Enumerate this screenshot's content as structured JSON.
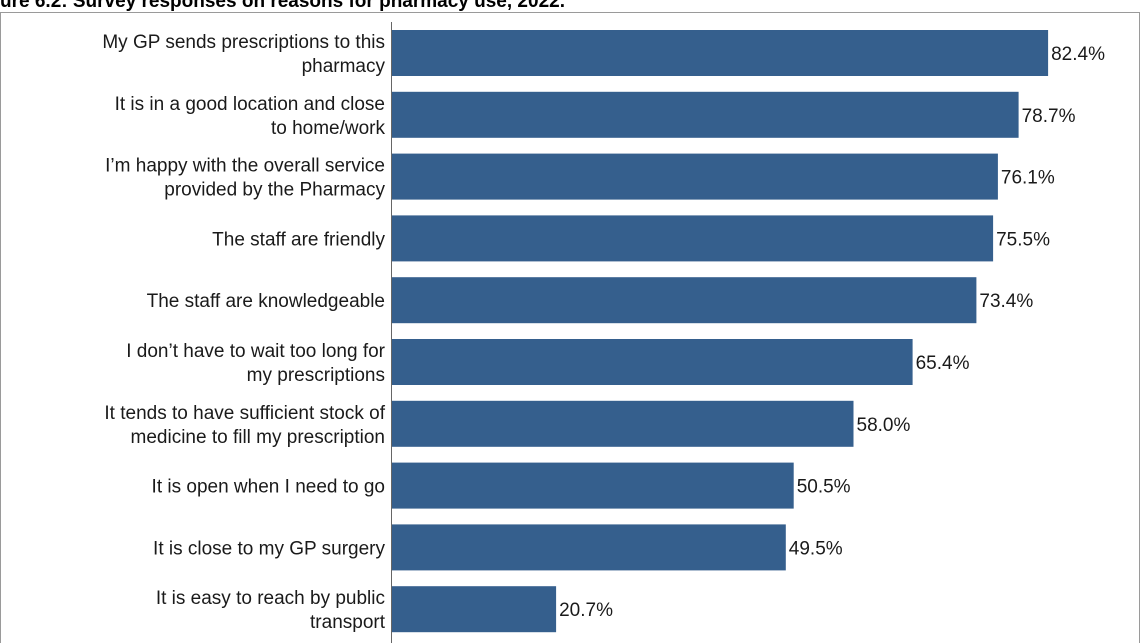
{
  "figure": {
    "title": "ure 6.2: Survey responses on reasons for pharmacy use, 2022."
  },
  "chart_data": {
    "type": "bar",
    "orientation": "horizontal",
    "title": "ure 6.2: Survey responses on reasons for pharmacy use, 2022.",
    "categories": [
      [
        "My GP sends prescriptions to this",
        "pharmacy"
      ],
      [
        "It is in a good location and close",
        "to home/work"
      ],
      [
        "I’m happy with the overall service",
        "provided by the Pharmacy"
      ],
      [
        "The staff are friendly"
      ],
      [
        "The staff are knowledgeable"
      ],
      [
        "I don’t have to wait too long for",
        "my prescriptions"
      ],
      [
        "It tends to have sufficient stock of",
        "medicine to fill my prescription"
      ],
      [
        "It is open when I need to go"
      ],
      [
        "It is close to my GP surgery"
      ],
      [
        "It is easy to reach by public",
        "transport"
      ]
    ],
    "values": [
      82.4,
      78.7,
      76.1,
      75.5,
      73.4,
      65.4,
      58.0,
      50.5,
      49.5,
      20.7
    ],
    "value_labels": [
      "82.4%",
      "78.7%",
      "76.1%",
      "75.5%",
      "73.4%",
      "65.4%",
      "58.0%",
      "50.5%",
      "49.5%",
      "20.7%"
    ],
    "xlim": [
      0,
      100
    ],
    "xlabel": "",
    "ylabel": "",
    "grid": false,
    "legend": "none",
    "bar_color": "#355f8d",
    "axis_color": "#666666"
  }
}
